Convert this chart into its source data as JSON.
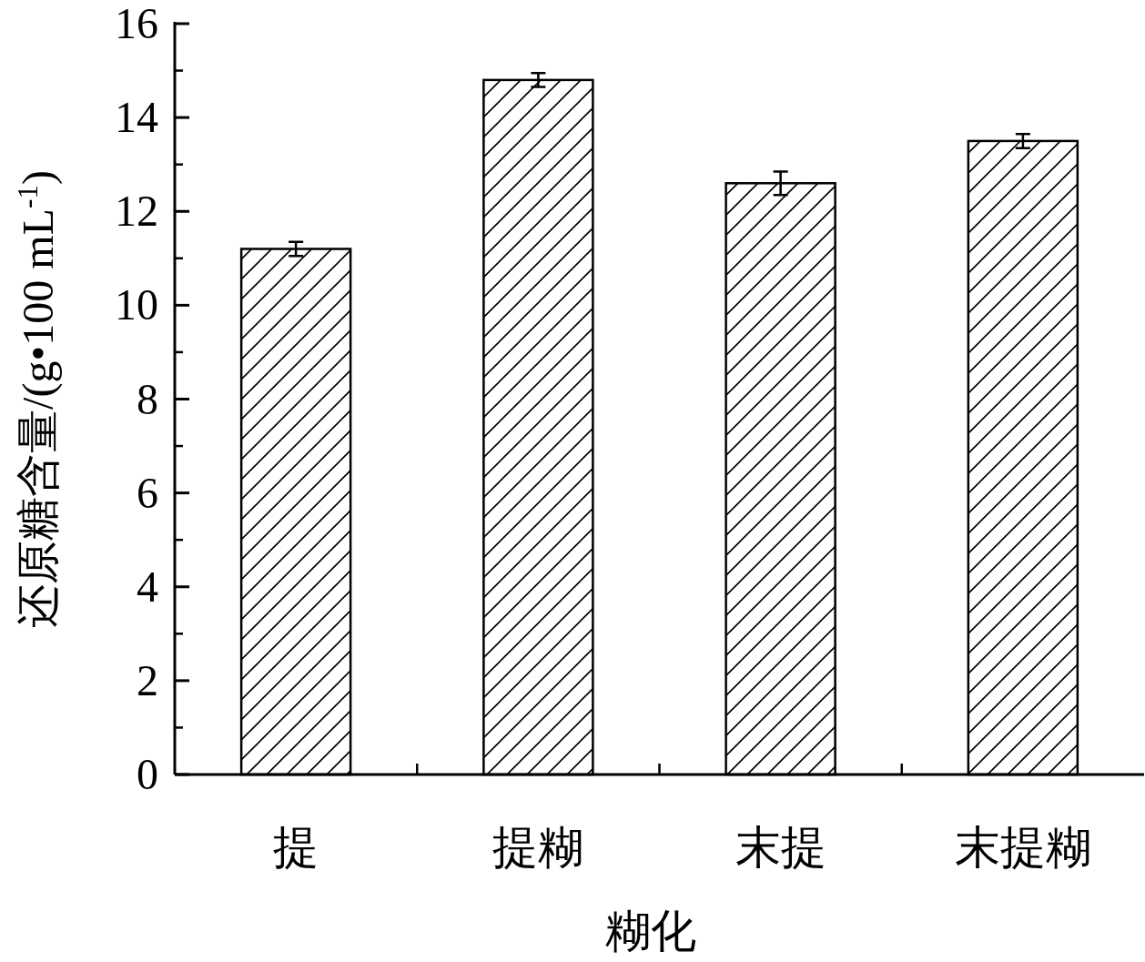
{
  "chart_data": {
    "type": "bar",
    "xlabel": "糊化",
    "ylabel": "还原糖含量/(g•100 mL$^{-1}$)",
    "categories": [
      "提",
      "提糊",
      "末提",
      "末提糊"
    ],
    "values": [
      11.2,
      14.8,
      12.6,
      13.5
    ],
    "errors": [
      0.15,
      0.15,
      0.25,
      0.15
    ],
    "color": "#000000",
    "ylim": [
      0,
      16
    ],
    "yticks": [
      0,
      2,
      4,
      6,
      8,
      10,
      12,
      14,
      16
    ]
  }
}
